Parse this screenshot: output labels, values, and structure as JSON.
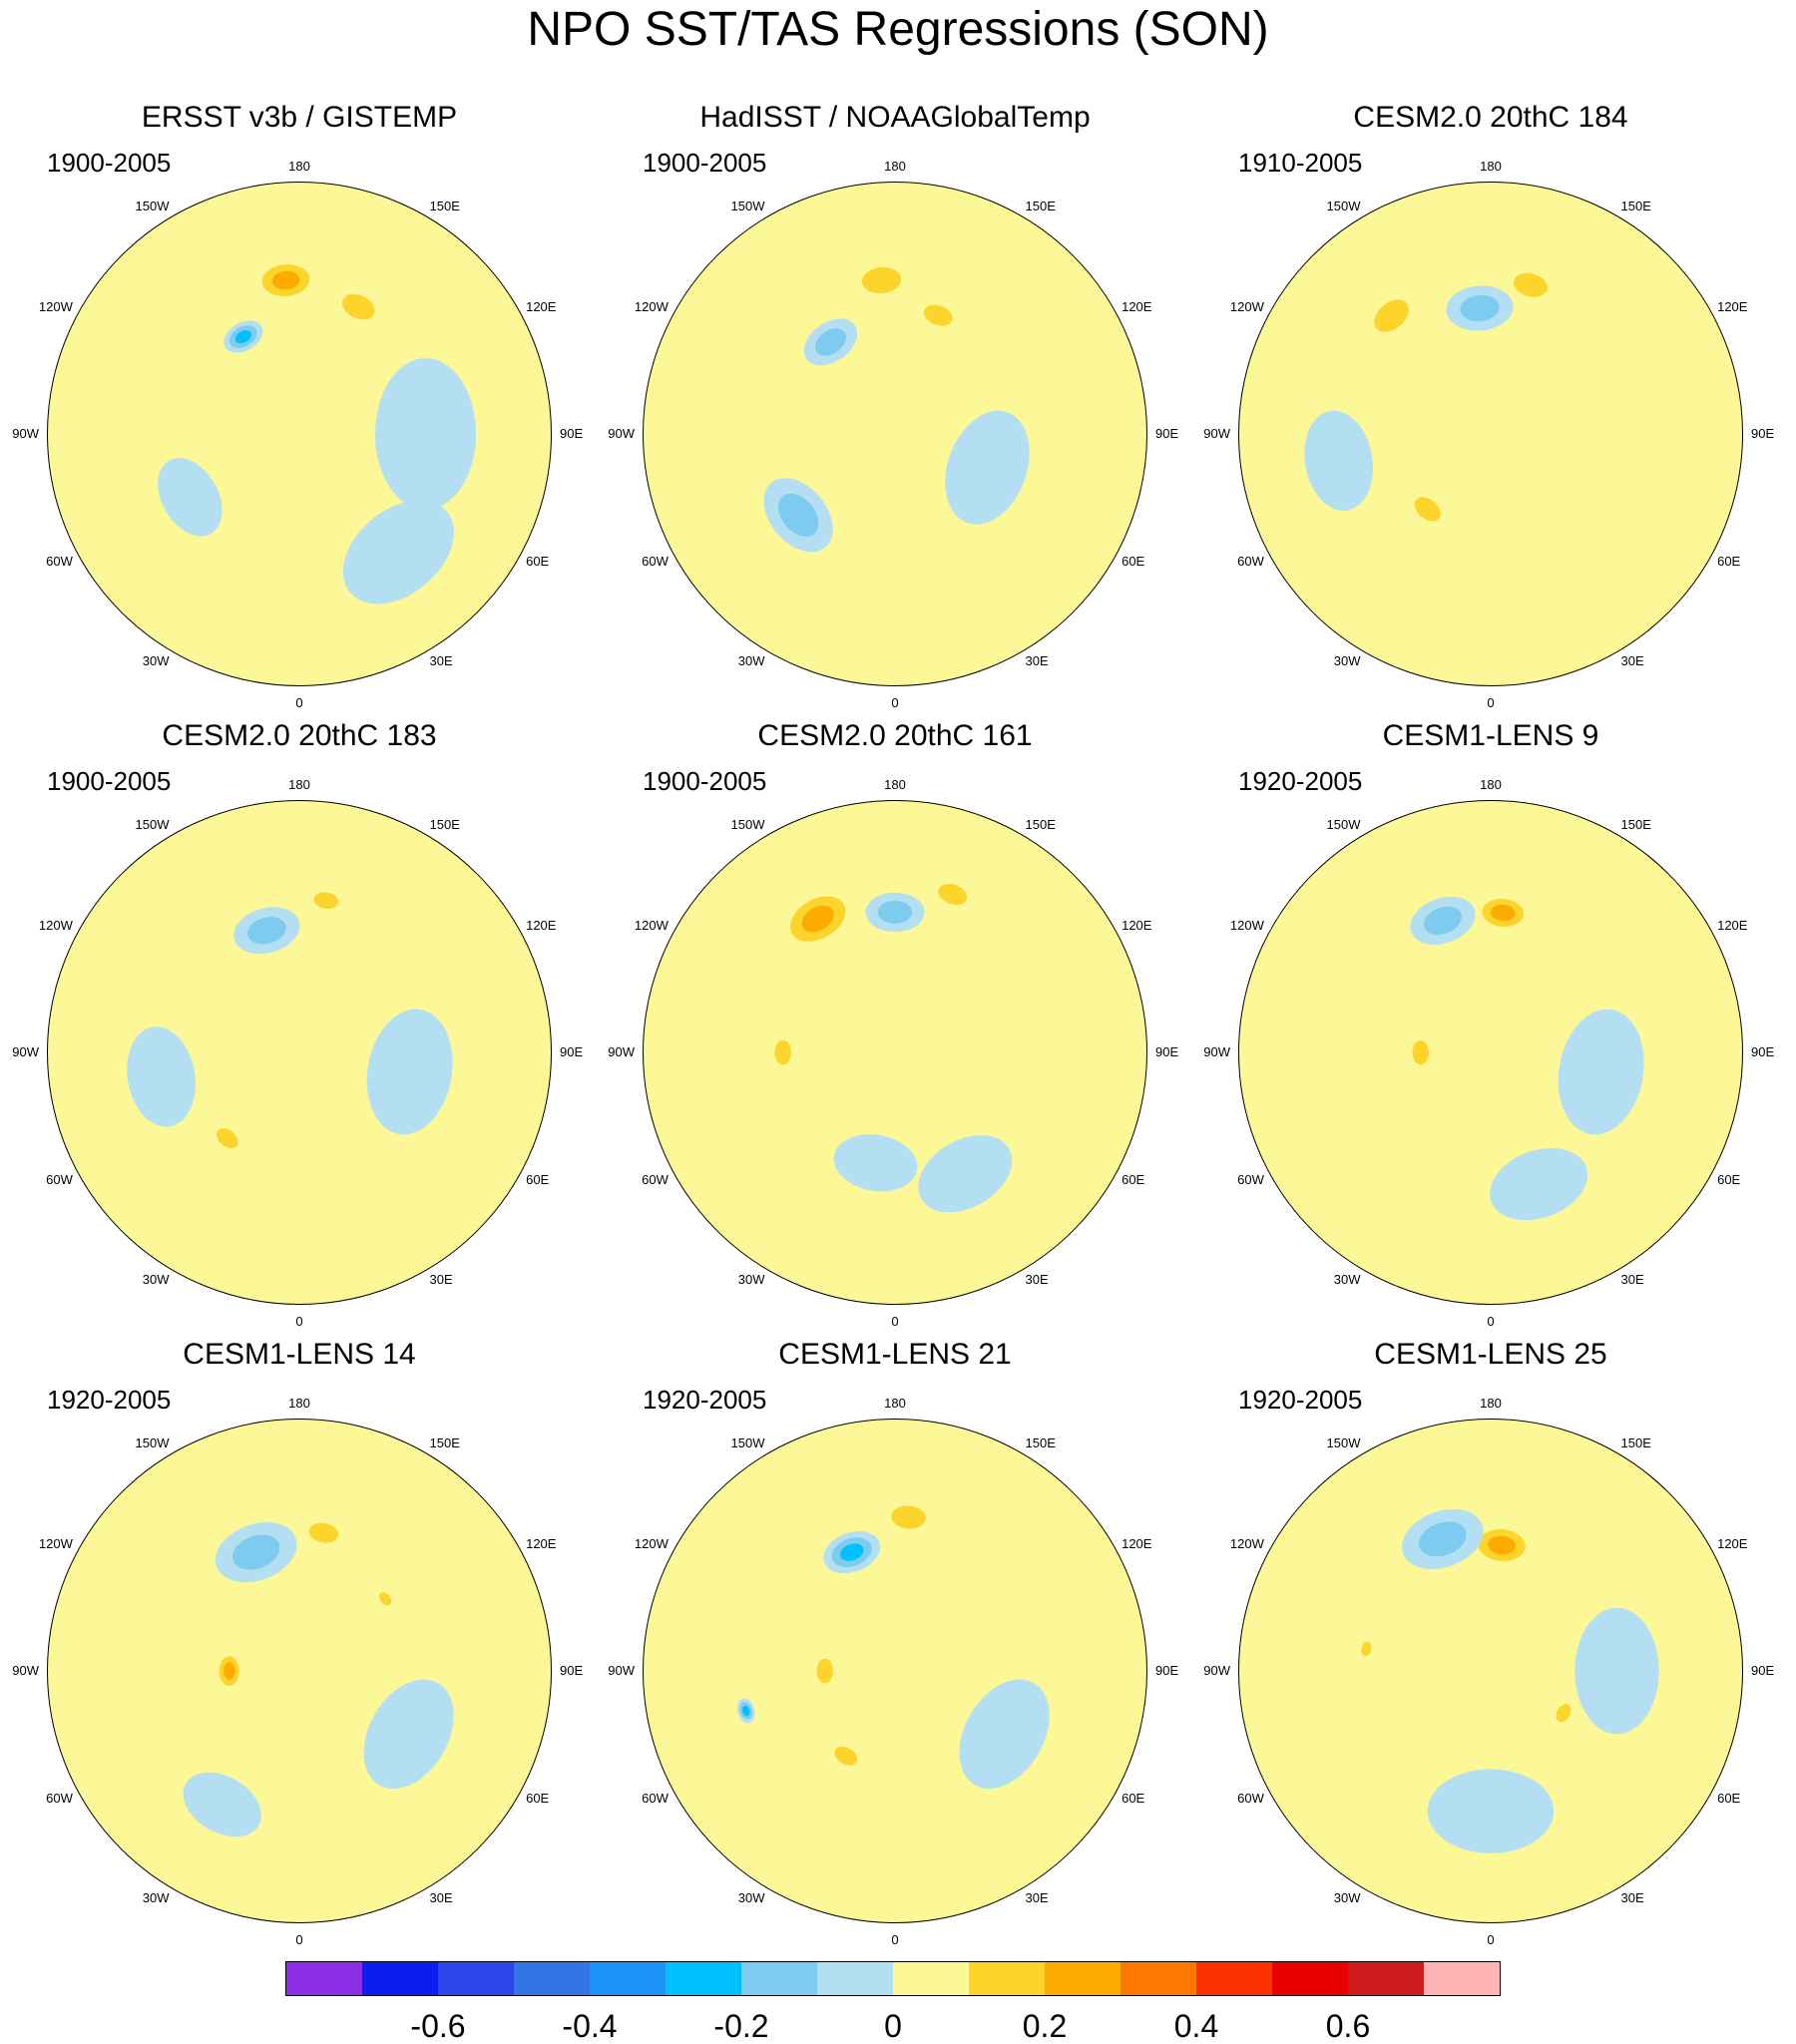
{
  "title": "NPO SST/TAS Regressions (SON)",
  "map_labels": {
    "top": "180",
    "bottom": "0",
    "upper_left": "150W",
    "upper_right": "150E",
    "mid_upper_left": "120W",
    "mid_upper_right": "120E",
    "left": "90W",
    "right": "90E",
    "mid_lower_left": "60W",
    "mid_lower_right": "60E",
    "lower_left": "30W",
    "lower_right": "30E"
  },
  "colors": {
    "background_positive": "#fcf797",
    "background_negative": "#b4dff2"
  },
  "panels": [
    {
      "title": "ERSST v3b / GISTEMP",
      "period": "1900-2005",
      "features": [
        {
          "lon": -150,
          "colat": 40,
          "r": 5,
          "v": -0.3
        },
        {
          "lon": -175,
          "colat": 55,
          "r": 8,
          "v": 0.3
        },
        {
          "lon": 155,
          "colat": 50,
          "r": 7,
          "v": 0.2
        },
        {
          "lon": 90,
          "colat": 45,
          "r": 18,
          "v": -0.05
        },
        {
          "lon": 40,
          "colat": 55,
          "r": 15,
          "v": -0.05
        },
        {
          "lon": -60,
          "colat": 45,
          "r": 10,
          "v": -0.05
        }
      ]
    },
    {
      "title": "HadISST / NOAAGlobalTemp",
      "period": "1900-2005",
      "features": [
        {
          "lon": -145,
          "colat": 40,
          "r": 7,
          "v": -0.2
        },
        {
          "lon": -175,
          "colat": 55,
          "r": 8,
          "v": 0.2
        },
        {
          "lon": 160,
          "colat": 45,
          "r": 6,
          "v": 0.2
        },
        {
          "lon": -50,
          "colat": 45,
          "r": 10,
          "v": -0.15
        },
        {
          "lon": 70,
          "colat": 35,
          "r": 14,
          "v": -0.05
        }
      ]
    },
    {
      "title": "CESM2.0 20thC 184",
      "period": "1910-2005",
      "features": [
        {
          "lon": -175,
          "colat": 45,
          "r": 8,
          "v": -0.2
        },
        {
          "lon": 165,
          "colat": 55,
          "r": 7,
          "v": 0.2
        },
        {
          "lon": -140,
          "colat": 55,
          "r": 8,
          "v": 0.15
        },
        {
          "lon": -40,
          "colat": 35,
          "r": 6,
          "v": 0.15
        },
        {
          "lon": 100,
          "colat": 40,
          "r": 14,
          "v": 0.05
        },
        {
          "lon": -80,
          "colat": 55,
          "r": 12,
          "v": -0.05
        }
      ]
    },
    {
      "title": "CESM2.0 20thC 183",
      "period": "1900-2005",
      "features": [
        {
          "lon": -165,
          "colat": 45,
          "r": 8,
          "v": -0.2
        },
        {
          "lon": 170,
          "colat": 55,
          "r": 5,
          "v": 0.15
        },
        {
          "lon": -40,
          "colat": 40,
          "r": 5,
          "v": 0.2
        },
        {
          "lon": 80,
          "colat": 40,
          "r": 15,
          "v": -0.05
        },
        {
          "lon": -80,
          "colat": 50,
          "r": 12,
          "v": -0.05
        }
      ]
    },
    {
      "title": "CESM2.0 20thC 161",
      "period": "1900-2005",
      "features": [
        {
          "lon": -150,
          "colat": 55,
          "r": 10,
          "v": 0.25
        },
        {
          "lon": 180,
          "colat": 50,
          "r": 7,
          "v": -0.15
        },
        {
          "lon": 160,
          "colat": 60,
          "r": 6,
          "v": 0.15
        },
        {
          "lon": -90,
          "colat": 40,
          "r": 5,
          "v": 0.15
        },
        {
          "lon": 30,
          "colat": 50,
          "r": 12,
          "v": -0.05
        },
        {
          "lon": -10,
          "colat": 40,
          "r": 10,
          "v": -0.05
        }
      ]
    },
    {
      "title": "CESM1-LENS 9",
      "period": "1920-2005",
      "features": [
        {
          "lon": 175,
          "colat": 50,
          "r": 7,
          "v": 0.3
        },
        {
          "lon": -160,
          "colat": 50,
          "r": 8,
          "v": -0.2
        },
        {
          "lon": -90,
          "colat": 25,
          "r": 5,
          "v": 0.2
        },
        {
          "lon": 80,
          "colat": 40,
          "r": 15,
          "v": -0.05
        },
        {
          "lon": 20,
          "colat": 50,
          "r": 12,
          "v": -0.05
        }
      ]
    },
    {
      "title": "CESM1-LENS 14",
      "period": "1920-2005",
      "features": [
        {
          "lon": -160,
          "colat": 45,
          "r": 10,
          "v": -0.15
        },
        {
          "lon": 170,
          "colat": 50,
          "r": 6,
          "v": 0.15
        },
        {
          "lon": -90,
          "colat": 25,
          "r": 5,
          "v": 0.25
        },
        {
          "lon": 130,
          "colat": 40,
          "r": 3,
          "v": 0.2
        },
        {
          "lon": 60,
          "colat": 45,
          "r": 14,
          "v": -0.05
        },
        {
          "lon": -30,
          "colat": 55,
          "r": 10,
          "v": -0.05
        }
      ]
    },
    {
      "title": "CESM1-LENS 21",
      "period": "1920-2005",
      "features": [
        {
          "lon": 175,
          "colat": 55,
          "r": 7,
          "v": 0.2
        },
        {
          "lon": -160,
          "colat": 45,
          "r": 7,
          "v": -0.25
        },
        {
          "lon": -90,
          "colat": 25,
          "r": 5,
          "v": 0.2
        },
        {
          "lon": -75,
          "colat": 55,
          "r": 3,
          "v": -0.3
        },
        {
          "lon": -30,
          "colat": 35,
          "r": 5,
          "v": 0.2
        },
        {
          "lon": 60,
          "colat": 45,
          "r": 14,
          "v": -0.05
        }
      ]
    },
    {
      "title": "CESM1-LENS 25",
      "period": "1920-2005",
      "features": [
        {
          "lon": 175,
          "colat": 45,
          "r": 8,
          "v": 0.25
        },
        {
          "lon": -160,
          "colat": 50,
          "r": 10,
          "v": -0.15
        },
        {
          "lon": -100,
          "colat": 45,
          "r": 3,
          "v": 0.15
        },
        {
          "lon": 60,
          "colat": 30,
          "r": 4,
          "v": 0.2
        },
        {
          "lon": 90,
          "colat": 45,
          "r": 15,
          "v": -0.05
        },
        {
          "lon": 0,
          "colat": 50,
          "r": 15,
          "v": -0.05
        }
      ]
    }
  ],
  "colorbar": {
    "colors": [
      "#8a2ee8",
      "#0a1ef0",
      "#2b46e8",
      "#3276e6",
      "#1e93f7",
      "#00c1ff",
      "#7ecbf0",
      "#b4dff2",
      "#fcf797",
      "#fcd42b",
      "#fcab00",
      "#fc7800",
      "#fc3200",
      "#e60000",
      "#cd1c1c",
      "#fcb4b4"
    ],
    "ticks": [
      "-0.6",
      "-0.4",
      "-0.2",
      "0",
      "0.2",
      "0.4",
      "0.6"
    ],
    "tick_values": [
      -0.6,
      -0.4,
      -0.2,
      0,
      0.2,
      0.4,
      0.6
    ],
    "levels": [
      -0.7,
      -0.6,
      -0.5,
      -0.4,
      -0.3,
      -0.2,
      -0.1,
      0,
      0.1,
      0.2,
      0.3,
      0.4,
      0.5,
      0.6,
      0.7
    ]
  }
}
